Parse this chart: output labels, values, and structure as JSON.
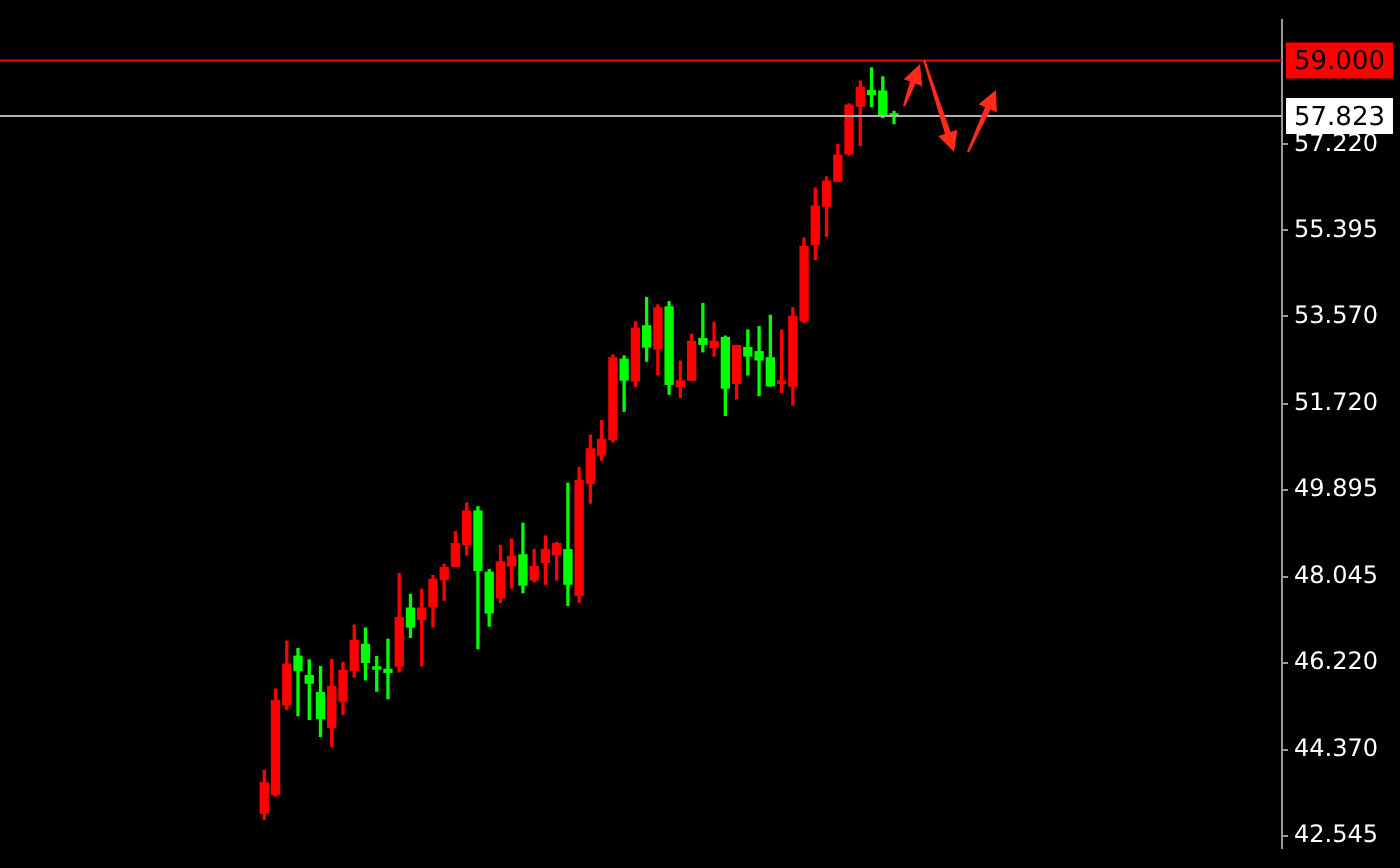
{
  "chart_data": {
    "type": "candlestick",
    "categories": [
      null,
      null,
      null,
      null,
      null,
      null,
      null,
      null,
      null,
      null,
      null,
      null,
      null,
      null,
      null,
      null,
      null,
      null,
      null,
      null,
      null,
      null,
      null,
      null,
      null,
      null,
      null,
      null,
      null,
      null,
      null,
      null,
      null,
      null,
      null,
      null,
      null,
      null,
      null,
      null,
      null,
      null,
      null,
      null,
      null,
      null,
      null,
      null,
      null,
      null,
      null,
      null,
      null,
      null,
      null,
      null,
      null,
      null,
      null,
      null,
      null,
      null,
      null,
      null,
      null,
      null,
      null,
      null,
      null,
      null,
      null,
      null,
      null,
      null,
      null,
      null,
      null,
      null,
      null,
      null,
      null,
      null,
      null,
      null,
      null,
      null,
      null,
      null,
      null,
      null,
      null,
      null,
      null,
      null,
      null,
      null,
      null,
      null,
      null,
      null,
      null,
      null,
      null,
      null,
      null,
      null,
      null,
      null,
      null,
      null,
      null,
      null,
      null,
      null
    ],
    "ohlc": [
      null,
      null,
      null,
      null,
      null,
      null,
      null,
      null,
      null,
      null,
      null,
      null,
      null,
      null,
      null,
      null,
      null,
      null,
      null,
      null,
      null,
      null,
      null,
      [
        43.03,
        43.93,
        42.9,
        43.67
      ],
      [
        43.43,
        45.66,
        43.4,
        45.42
      ],
      [
        45.33,
        46.68,
        45.23,
        46.19
      ],
      [
        46.36,
        46.52,
        45.1,
        46.06
      ],
      [
        45.95,
        46.28,
        45.02,
        45.79
      ],
      [
        45.59,
        46.14,
        44.66,
        45.04
      ],
      [
        44.85,
        46.29,
        44.44,
        45.72
      ],
      [
        45.41,
        46.23,
        45.13,
        46.06
      ],
      [
        46.06,
        47.02,
        45.92,
        46.69
      ],
      [
        46.61,
        46.96,
        45.86,
        46.23
      ],
      [
        46.12,
        46.35,
        45.62,
        46.09
      ],
      [
        46.08,
        46.72,
        45.46,
        46.02
      ],
      [
        46.15,
        48.11,
        46.03,
        47.18
      ],
      [
        47.38,
        47.67,
        46.76,
        46.98
      ],
      [
        47.14,
        47.78,
        46.16,
        47.38
      ],
      [
        47.41,
        48.07,
        46.98,
        47.99
      ],
      [
        47.99,
        48.31,
        47.55,
        48.24
      ],
      [
        48.27,
        49.0,
        48.27,
        48.75
      ],
      [
        48.73,
        49.61,
        48.51,
        49.44
      ],
      [
        49.44,
        49.53,
        46.52,
        48.18
      ],
      [
        48.14,
        48.2,
        47.0,
        47.28
      ],
      [
        47.6,
        48.71,
        47.5,
        48.36
      ],
      [
        48.28,
        48.84,
        47.81,
        48.48
      ],
      [
        48.51,
        49.18,
        47.71,
        47.87
      ],
      [
        47.98,
        48.62,
        47.94,
        48.26
      ],
      [
        48.35,
        48.91,
        47.89,
        48.62
      ],
      [
        48.51,
        48.77,
        47.98,
        48.75
      ],
      [
        48.62,
        50.03,
        47.44,
        47.89
      ],
      [
        47.65,
        50.36,
        47.51,
        50.09
      ],
      [
        50.03,
        51.05,
        49.61,
        50.76
      ],
      [
        50.63,
        51.36,
        50.52,
        50.96
      ],
      [
        50.96,
        52.75,
        50.91,
        52.69
      ],
      [
        52.66,
        52.73,
        51.56,
        52.22
      ],
      [
        52.2,
        53.45,
        52.09,
        53.32
      ],
      [
        53.37,
        53.97,
        52.62,
        52.92
      ],
      [
        52.88,
        53.81,
        52.33,
        53.75
      ],
      [
        53.77,
        53.88,
        51.92,
        52.13
      ],
      [
        52.08,
        52.62,
        51.85,
        52.2
      ],
      [
        52.22,
        53.19,
        52.22,
        53.04
      ],
      [
        53.1,
        53.84,
        52.82,
        52.98
      ],
      [
        52.91,
        53.44,
        52.73,
        53.04
      ],
      [
        53.12,
        53.15,
        51.47,
        52.05
      ],
      [
        52.15,
        52.95,
        51.82,
        52.95
      ],
      [
        52.91,
        53.28,
        52.33,
        52.73
      ],
      [
        52.82,
        53.35,
        51.89,
        52.65
      ],
      [
        52.69,
        53.59,
        52.09,
        52.1
      ],
      [
        52.15,
        53.28,
        51.96,
        52.2
      ],
      [
        52.09,
        53.75,
        51.69,
        53.57
      ],
      [
        53.48,
        55.23,
        53.44,
        55.05
      ],
      [
        55.1,
        56.29,
        54.78,
        55.91
      ],
      [
        55.91,
        56.53,
        55.27,
        56.44
      ],
      [
        56.44,
        57.22,
        56.44,
        56.99
      ],
      [
        57.02,
        58.08,
        56.99,
        58.05
      ],
      [
        58.03,
        58.56,
        57.2,
        58.43
      ],
      [
        58.36,
        58.84,
        58.02,
        58.28
      ],
      [
        58.35,
        58.65,
        57.79,
        57.83
      ],
      [
        57.86,
        57.92,
        57.66,
        57.823
      ],
      null,
      null,
      null,
      null,
      null,
      null,
      null,
      null,
      null,
      null,
      null,
      null,
      null,
      null,
      null,
      null,
      null,
      null,
      null,
      null,
      null,
      null,
      null,
      null,
      null,
      null,
      null,
      null,
      null,
      null,
      null,
      null,
      null,
      null
    ],
    "colors": [
      null,
      null,
      null,
      null,
      null,
      null,
      null,
      null,
      null,
      null,
      null,
      null,
      null,
      null,
      null,
      null,
      null,
      null,
      null,
      null,
      null,
      null,
      null,
      "#ff0000",
      "#ff0000",
      "#ff0000",
      "#00ff00",
      "#00ff00",
      "#00ff00",
      "#ff0000",
      "#ff0000",
      "#ff0000",
      "#00ff00",
      "#00ff00",
      "#00ff00",
      "#ff0000",
      "#00ff00",
      "#ff0000",
      "#ff0000",
      "#ff0000",
      "#ff0000",
      "#ff0000",
      "#00ff00",
      "#00ff00",
      "#ff0000",
      "#ff0000",
      "#00ff00",
      "#ff0000",
      "#ff0000",
      "#ff0000",
      "#00ff00",
      "#ff0000",
      "#ff0000",
      "#ff0000",
      "#ff0000",
      "#00ff00",
      "#ff0000",
      "#00ff00",
      "#ff0000",
      "#00ff00",
      "#ff0000",
      "#ff0000",
      "#00ff00",
      "#ff0000",
      "#00ff00",
      "#ff0000",
      "#00ff00",
      "#00ff00",
      "#00ff00",
      "#ff0000",
      "#ff0000",
      "#ff0000",
      "#ff0000",
      "#ff0000",
      "#ff0000",
      "#ff0000",
      "#ff0000",
      "#00ff00",
      "#00ff00",
      "#00ff00",
      null,
      null,
      null,
      null,
      null,
      null,
      null,
      null,
      null,
      null,
      null,
      null,
      null,
      null,
      null,
      null,
      null,
      null,
      null,
      null,
      null,
      null,
      null,
      null,
      null,
      null,
      null,
      null,
      null,
      null,
      null,
      null,
      null,
      null
    ],
    "ylim": [
      42.3,
      59.85
    ],
    "yticks": [
      42.545,
      {
        "value": 44.37,
        "label": "44.370"
      },
      {
        "value": 46.22,
        "label": "46.220"
      },
      48.045,
      49.895,
      {
        "value": 51.72,
        "label": "51.720"
      },
      {
        "value": 53.57,
        "label": "53.570"
      },
      55.395,
      {
        "value": 57.22,
        "label": "57.220"
      }
    ],
    "ref_lines": [
      {
        "axis": "y",
        "value": 59,
        "label": "59.000",
        "color": "#ff0000"
      },
      {
        "axis": "y",
        "value": 57.823,
        "label": "57.823",
        "color": "#b4b4b4"
      }
    ],
    "tick_labels": "y"
  }
}
